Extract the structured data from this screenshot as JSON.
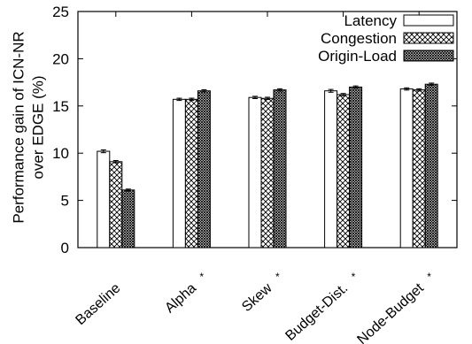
{
  "chart_data": {
    "type": "bar",
    "categories": [
      "Baseline",
      "Alpha",
      "Skew",
      "Budget-Dist.",
      "Node-Budget"
    ],
    "category_marks": [
      "",
      "*",
      "*",
      "*",
      "*"
    ],
    "series": [
      {
        "name": "Latency",
        "values": [
          10.2,
          15.7,
          15.9,
          16.6,
          16.8
        ],
        "errors": [
          0.15,
          0.12,
          0.12,
          0.15,
          0.12
        ],
        "pattern": "none"
      },
      {
        "name": "Congestion",
        "values": [
          9.1,
          15.7,
          15.8,
          16.2,
          16.7
        ],
        "errors": [
          0.12,
          0.12,
          0.12,
          0.12,
          0.12
        ],
        "pattern": "cross-hatch"
      },
      {
        "name": "Origin-Load",
        "values": [
          6.1,
          16.6,
          16.7,
          17.0,
          17.3
        ],
        "errors": [
          0.1,
          0.12,
          0.12,
          0.12,
          0.12
        ],
        "pattern": "dense-cross-hatch"
      }
    ],
    "ylabel_lines": [
      "Performance gain of ICN-NR",
      "over EDGE (%)"
    ],
    "xlabel": "",
    "ylim": [
      0,
      25
    ],
    "yticks": [
      "0",
      "5",
      "10",
      "15",
      "20",
      "25"
    ],
    "legend_position": "top-right",
    "grid": false
  }
}
